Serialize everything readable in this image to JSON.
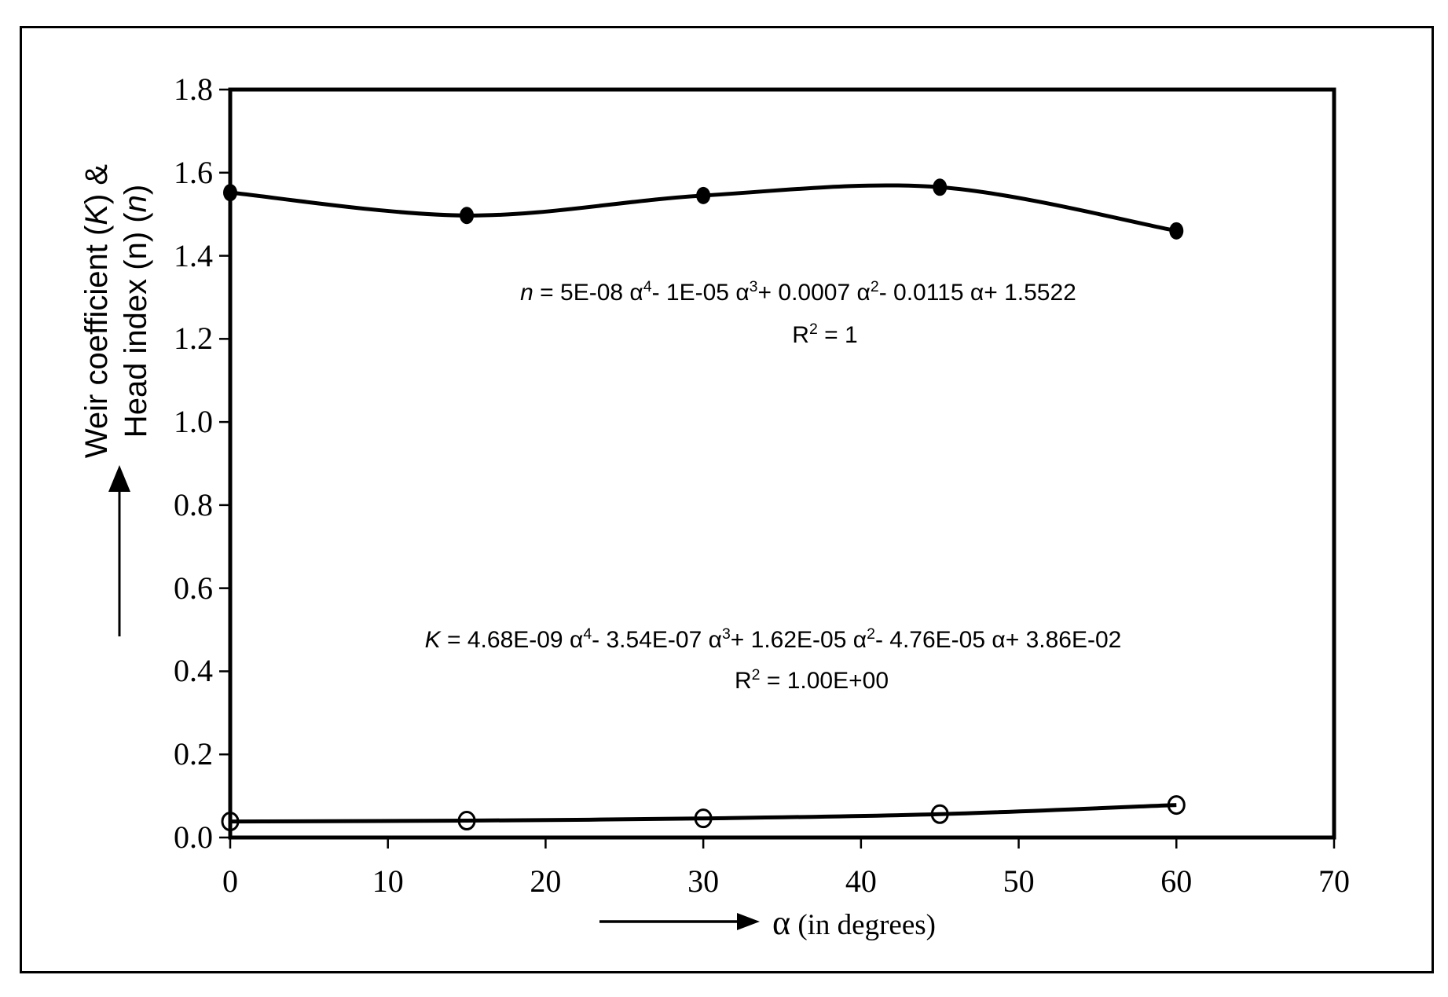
{
  "figure": {
    "background": "#ffffff",
    "ink_color": "#000000",
    "border_color": "#000000"
  },
  "chart_data": {
    "type": "scatter",
    "title": "",
    "xlabel": "α (in degrees)",
    "ylabel": "Weir coefficient (K) & Head index (n) (n)",
    "x": [
      0,
      15,
      30,
      45,
      60
    ],
    "series": [
      {
        "name": "Head index (n)",
        "marker": "filled-circle",
        "line": "smooth",
        "values": [
          1.552,
          1.497,
          1.545,
          1.565,
          1.46
        ]
      },
      {
        "name": "Weir coefficient (K)",
        "marker": "open-circle",
        "line": "smooth",
        "values": [
          0.0386,
          0.0406,
          0.046,
          0.0562,
          0.0783
        ]
      }
    ],
    "xlim": [
      0,
      70
    ],
    "ylim": [
      0.0,
      1.8
    ],
    "x_ticks": [
      0,
      10,
      20,
      30,
      40,
      50,
      60,
      70
    ],
    "x_tick_labels": [
      "0",
      "10",
      "20",
      "30",
      "40",
      "50",
      "60",
      "70"
    ],
    "y_tick_labels": [
      "0.0",
      "0.2",
      "0.4",
      "0.6",
      "0.8",
      "1.0",
      "1.2",
      "1.4",
      "1.6",
      "1.8"
    ],
    "grid": false,
    "legend_position": "none",
    "annotations": [
      "n = 5E-08 α4 - 1E-05 α3 + 0.0007 α2 - 0.0115 α + 1.5522",
      "R2 = 1",
      "K = 4.68E-09 α4 - 3.54E-07 α3 + 1.62E-05 α2 - 4.76E-05 α + 3.86E-02",
      "R2 = 1.00E+00"
    ]
  },
  "equations": {
    "n_eq": [
      {
        "t": "n",
        "s": "i"
      },
      {
        "t": " = 5E-08 ",
        "s": ""
      },
      {
        "t": "α",
        "s": ""
      },
      {
        "t": "4",
        "s": "sup"
      },
      {
        "t": "- 1E-05 ",
        "s": ""
      },
      {
        "t": "α",
        "s": ""
      },
      {
        "t": "3",
        "s": "sup"
      },
      {
        "t": "+ 0.0007 ",
        "s": ""
      },
      {
        "t": "α",
        "s": ""
      },
      {
        "t": "2",
        "s": "sup"
      },
      {
        "t": "- 0.0115  ",
        "s": ""
      },
      {
        "t": "α",
        "s": ""
      },
      {
        "t": "+ 1.5522",
        "s": ""
      }
    ],
    "n_r2": [
      {
        "t": "R",
        "s": ""
      },
      {
        "t": "2",
        "s": "sup"
      },
      {
        "t": " = 1",
        "s": ""
      }
    ],
    "k_eq": [
      {
        "t": "K",
        "s": "i"
      },
      {
        "t": " = 4.68E-09  ",
        "s": ""
      },
      {
        "t": "α",
        "s": ""
      },
      {
        "t": "4",
        "s": "sup"
      },
      {
        "t": "- 3.54E-07  ",
        "s": ""
      },
      {
        "t": "α",
        "s": ""
      },
      {
        "t": "3",
        "s": "sup"
      },
      {
        "t": "+ 1.62E-05  ",
        "s": ""
      },
      {
        "t": "α",
        "s": ""
      },
      {
        "t": "2",
        "s": "sup"
      },
      {
        "t": "- 4.76E-05  ",
        "s": ""
      },
      {
        "t": "α",
        "s": ""
      },
      {
        "t": "+ 3.86E-02",
        "s": ""
      }
    ],
    "k_r2": [
      {
        "t": "R",
        "s": ""
      },
      {
        "t": "2",
        "s": "sup"
      },
      {
        "t": " = 1.00E+00",
        "s": ""
      }
    ]
  },
  "axis_labels": {
    "y_line1": [
      {
        "t": "Weir coefficient  (",
        "s": ""
      },
      {
        "t": "K",
        "s": "i"
      },
      {
        "t": ") &",
        "s": ""
      }
    ],
    "y_line2": [
      {
        "t": "Head index (n) (",
        "s": ""
      },
      {
        "t": "n",
        "s": "i"
      },
      {
        "t": ")",
        "s": ""
      }
    ],
    "x": [
      {
        "t": "α",
        "s": "alpha"
      },
      {
        "t": " (in degrees)",
        "s": ""
      }
    ]
  }
}
